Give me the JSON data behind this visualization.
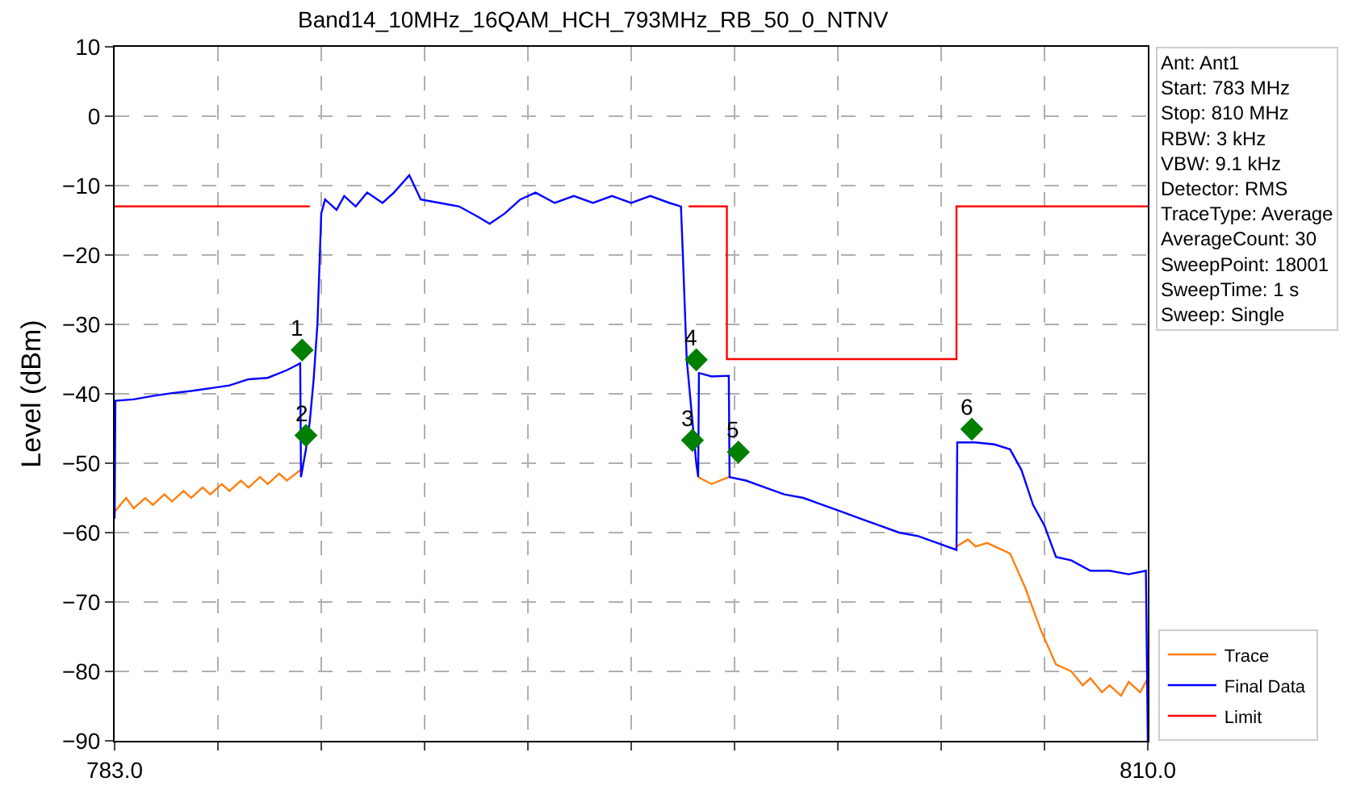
{
  "chart_data": {
    "type": "line",
    "title": "Band14_10MHz_16QAM_HCH_793MHz_RB_50_0_NTNV",
    "ylabel": "Level (dBm)",
    "xlim": [
      783,
      810
    ],
    "ylim": [
      -90,
      10
    ],
    "xticks": [
      {
        "value": 783,
        "label": "783.0"
      },
      {
        "value": 785.7,
        "label": null
      },
      {
        "value": 788.4,
        "label": null
      },
      {
        "value": 791.1,
        "label": null
      },
      {
        "value": 793.8,
        "label": null
      },
      {
        "value": 796.5,
        "label": null
      },
      {
        "value": 799.2,
        "label": null
      },
      {
        "value": 801.9,
        "label": null
      },
      {
        "value": 804.6,
        "label": null
      },
      {
        "value": 807.3,
        "label": null
      },
      {
        "value": 810,
        "label": "810.0"
      }
    ],
    "yticks": [
      10,
      0,
      -10,
      -20,
      -30,
      -40,
      -50,
      -60,
      -70,
      -80,
      -90
    ],
    "grid": true,
    "line_style": "solid",
    "legend": "bottom right",
    "annotations": [
      {
        "text": "1",
        "x": 787.9,
        "y": -33.7
      },
      {
        "text": "2",
        "x": 788.0,
        "y": -46.0
      },
      {
        "text": "3",
        "x": 798.1,
        "y": -46.7
      },
      {
        "text": "4",
        "x": 798.2,
        "y": -35.1
      },
      {
        "text": "5",
        "x": 799.3,
        "y": -48.4
      },
      {
        "text": "6",
        "x": 805.4,
        "y": -45.1
      },
      "Ant: Ant1",
      "Start: 783 MHz",
      "Stop: 810 MHz",
      "RBW: 3 kHz",
      "VBW: 9.1 kHz",
      "Detector: RMS",
      "TraceType: Average",
      "AverageCount: 30",
      "SweepPoint: 18001",
      "SweepTime: 1 s",
      "Sweep: Single"
    ],
    "series": [
      {
        "name": "Trace",
        "color": "#ff7f0e",
        "x": [
          783,
          783.3,
          783.5,
          783.8,
          784,
          784.3,
          784.5,
          784.8,
          785,
          785.3,
          785.5,
          785.8,
          786,
          786.3,
          786.5,
          786.8,
          787,
          787.3,
          787.5,
          787.85,
          788,
          798.25,
          798.6,
          799.05,
          799.5,
          805.0,
          805.3,
          805.5,
          805.8,
          806,
          806.4,
          806.8,
          807.2,
          807.6,
          808,
          808.3,
          808.5,
          808.8,
          809,
          809.3,
          809.5,
          809.8,
          810
        ],
        "values": [
          -57,
          -55,
          -56.5,
          -55,
          -56,
          -54.5,
          -55.5,
          -54,
          -55,
          -53.5,
          -54.5,
          -53,
          -54,
          -52.5,
          -53.5,
          -52,
          -53,
          -51.5,
          -52.5,
          -51,
          null,
          -52,
          -53,
          -52,
          null,
          -62,
          -61,
          -62,
          -61.5,
          -62,
          -63,
          -68,
          -74,
          -79,
          -80,
          -82,
          -81,
          -83,
          -82,
          -83.5,
          -81.5,
          -83,
          -81
        ]
      },
      {
        "name": "Final Data",
        "color": "#0000ff",
        "x": [
          783,
          783.02,
          783.5,
          784,
          784.5,
          785,
          785.5,
          786,
          786.5,
          787,
          787.5,
          787.85,
          787.87,
          788,
          788.1,
          788.2,
          788.3,
          788.35,
          788.4,
          788.5,
          788.8,
          789,
          789.3,
          789.6,
          790,
          790.3,
          790.7,
          791,
          791.5,
          792,
          792.5,
          792.8,
          793.2,
          793.6,
          794,
          794.5,
          795,
          795.5,
          796,
          796.5,
          797,
          797.5,
          797.8,
          797.85,
          797.95,
          798.1,
          798.2,
          798.25,
          798.27,
          798.6,
          799.05,
          799.07,
          799.5,
          800,
          800.5,
          801,
          801.5,
          802,
          802.5,
          803,
          803.5,
          804,
          804.5,
          805.0,
          805.02,
          805.5,
          806,
          806.4,
          806.7,
          807,
          807.3,
          807.6,
          808,
          808.5,
          809,
          809.5,
          809.95,
          810
        ],
        "values": [
          -58,
          -41,
          -40.8,
          -40.3,
          -39.9,
          -39.6,
          -39.2,
          -38.8,
          -37.9,
          -37.7,
          -36.6,
          -35.6,
          -52,
          -48,
          -44,
          -38,
          -30,
          -22,
          -14,
          -12,
          -13.5,
          -11.5,
          -13,
          -11,
          -12.5,
          -11,
          -8.5,
          -12,
          -12.5,
          -13,
          -14.5,
          -15.5,
          -14,
          -12,
          -11,
          -12.5,
          -11.5,
          -12.5,
          -11.5,
          -12.5,
          -11.5,
          -12.5,
          -13,
          -20,
          -35,
          -44,
          -50,
          -52,
          -37,
          -37.5,
          -37.4,
          -52,
          -52.5,
          -53.5,
          -54.5,
          -55,
          -56,
          -57,
          -58,
          -59,
          -60,
          -60.5,
          -61.5,
          -62.5,
          -47,
          -47,
          -47.3,
          -48,
          -51,
          -56,
          -59,
          -63.5,
          -64,
          -65.5,
          -65.5,
          -66,
          -65.5,
          -90
        ]
      },
      {
        "name": "Limit",
        "color": "#ff0000",
        "x": [
          783,
          788.1,
          788.2,
          798.0,
          799.0,
          799.0,
          805.0,
          805.0,
          810
        ],
        "values": [
          -13,
          -13,
          null,
          -13,
          -13,
          -35,
          -35,
          -13,
          -13
        ]
      },
      {
        "type": "scatter",
        "marker": "diamond",
        "color": "#007f00",
        "x": [
          787.9,
          788.0,
          798.1,
          798.2,
          799.3,
          805.4
        ],
        "values": [
          -33.7,
          -46.0,
          -46.7,
          -35.1,
          -48.4,
          -45.1
        ]
      }
    ]
  }
}
